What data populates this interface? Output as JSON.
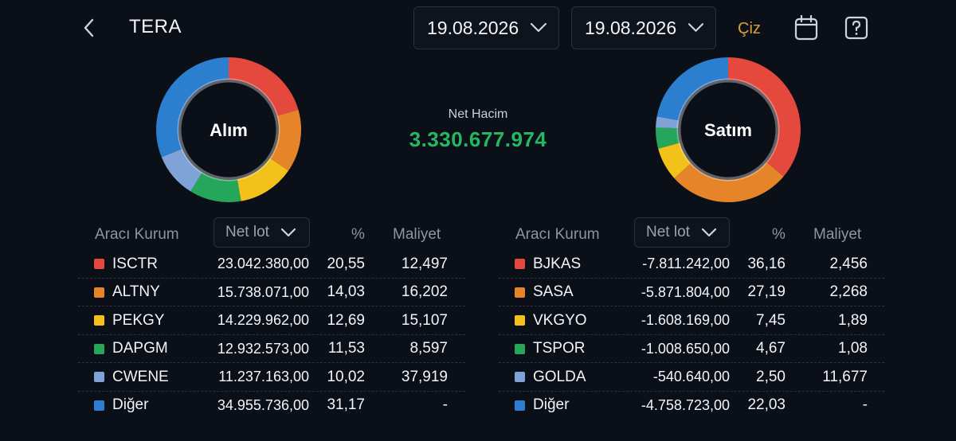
{
  "header": {
    "title": "TERA",
    "date_start": "19.08.2026",
    "date_end": "19.08.2026",
    "draw_label": "Çiz",
    "icons": [
      "back-chevron-icon",
      "chevron-down-icon",
      "calendar-icon",
      "help-icon"
    ]
  },
  "summary": {
    "net_volume_label": "Net Hacim",
    "net_volume_value": "3.330.677.974",
    "net_volume_color": "#25b864"
  },
  "colors": {
    "red": "#e5483c",
    "orange": "#e6842a",
    "yellow": "#f2c21b",
    "green": "#25a65a",
    "lightblue": "#7fa3d6",
    "blue": "#2c7fcf"
  },
  "buy": {
    "chart_label": "Alım",
    "col_broker": "Aracı Kurum",
    "col_lot_select": "Net lot",
    "col_pct": "%",
    "col_cost": "Maliyet",
    "rows": [
      {
        "name": "ISCTR",
        "lot": "23.042.380,00",
        "pct": "20,55",
        "cost": "12,497",
        "pct_value": 20.55,
        "color": "#e5483c"
      },
      {
        "name": "ALTNY",
        "lot": "15.738.071,00",
        "pct": "14,03",
        "cost": "16,202",
        "pct_value": 14.03,
        "color": "#e6842a"
      },
      {
        "name": "PEKGY",
        "lot": "14.229.962,00",
        "pct": "12,69",
        "cost": "15,107",
        "pct_value": 12.69,
        "color": "#f2c21b"
      },
      {
        "name": "DAPGM",
        "lot": "12.932.573,00",
        "pct": "11,53",
        "cost": "8,597",
        "pct_value": 11.53,
        "color": "#25a65a"
      },
      {
        "name": "CWENE",
        "lot": "11.237.163,00",
        "pct": "10,02",
        "cost": "37,919",
        "pct_value": 10.02,
        "color": "#7fa3d6"
      },
      {
        "name": "Diğer",
        "lot": "34.955.736,00",
        "pct": "31,17",
        "cost": "-",
        "pct_value": 31.17,
        "color": "#2c7fcf"
      }
    ]
  },
  "sell": {
    "chart_label": "Satım",
    "col_broker": "Aracı Kurum",
    "col_lot_select": "Net lot",
    "col_pct": "%",
    "col_cost": "Maliyet",
    "rows": [
      {
        "name": "BJKAS",
        "lot": "-7.811.242,00",
        "pct": "36,16",
        "cost": "2,456",
        "pct_value": 36.16,
        "color": "#e5483c"
      },
      {
        "name": "SASA",
        "lot": "-5.871.804,00",
        "pct": "27,19",
        "cost": "2,268",
        "pct_value": 27.19,
        "color": "#e6842a"
      },
      {
        "name": "VKGYO",
        "lot": "-1.608.169,00",
        "pct": "7,45",
        "cost": "1,89",
        "pct_value": 7.45,
        "color": "#f2c21b"
      },
      {
        "name": "TSPOR",
        "lot": "-1.008.650,00",
        "pct": "4,67",
        "cost": "1,08",
        "pct_value": 4.67,
        "color": "#25a65a"
      },
      {
        "name": "GOLDA",
        "lot": "-540.640,00",
        "pct": "2,50",
        "cost": "11,677",
        "pct_value": 2.5,
        "color": "#7fa3d6"
      },
      {
        "name": "Diğer",
        "lot": "-4.758.723,00",
        "pct": "22,03",
        "cost": "-",
        "pct_value": 22.03,
        "color": "#2c7fcf"
      }
    ]
  }
}
